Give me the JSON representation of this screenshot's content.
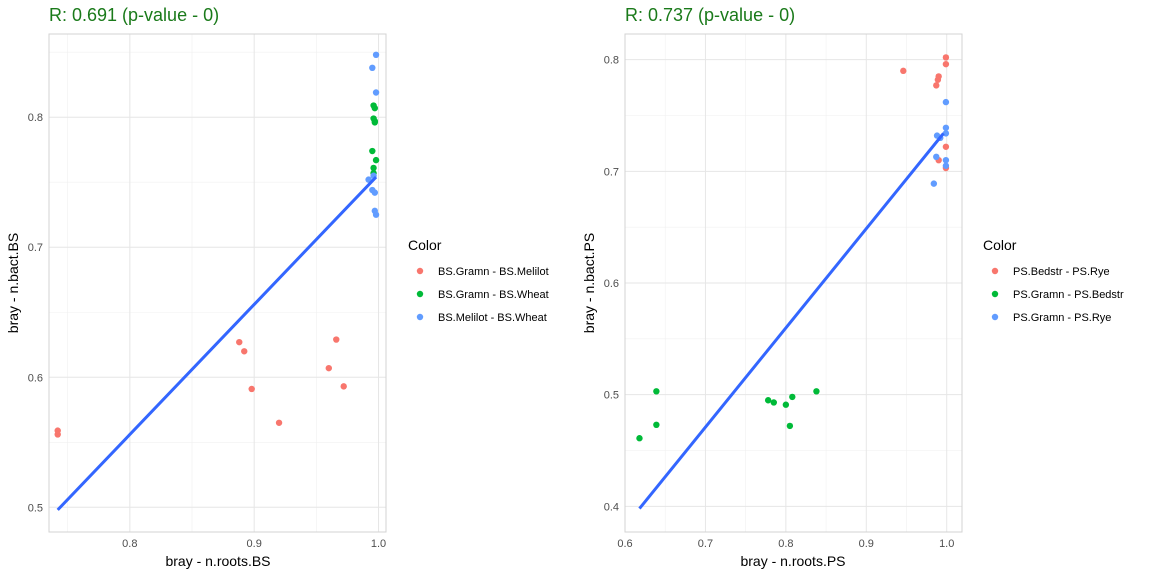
{
  "chart_data": [
    {
      "type": "scatter",
      "title": "R: 0.691 (p-value - 0)",
      "xlabel": "bray - n.roots.BS",
      "ylabel": "bray - n.bact.BS",
      "xlim": [
        0.735,
        1.006
      ],
      "ylim": [
        0.481,
        0.864
      ],
      "xticks": [
        0.8,
        0.9,
        1.0
      ],
      "xtick_labels": [
        "0.8",
        "0.9",
        "1.0"
      ],
      "yticks": [
        0.5,
        0.6,
        0.7,
        0.8
      ],
      "ytick_labels": [
        "0.5",
        "0.6",
        "0.7",
        "0.8"
      ],
      "grid": true,
      "legend_title": "Color",
      "legend_position": "right",
      "series": [
        {
          "name": "BS.Gramn - BS.Melilot",
          "color": "#F8766D",
          "points": [
            [
              0.742,
              0.559
            ],
            [
              0.742,
              0.556
            ],
            [
              0.888,
              0.627
            ],
            [
              0.892,
              0.62
            ],
            [
              0.898,
              0.591
            ],
            [
              0.92,
              0.565
            ],
            [
              0.96,
              0.607
            ],
            [
              0.966,
              0.629
            ],
            [
              0.972,
              0.593
            ]
          ]
        },
        {
          "name": "BS.Gramn - BS.Wheat",
          "color": "#00BA38",
          "points": [
            [
              0.996,
              0.809
            ],
            [
              0.997,
              0.807
            ],
            [
              0.996,
              0.799
            ],
            [
              0.997,
              0.797
            ],
            [
              0.997,
              0.796
            ],
            [
              0.995,
              0.774
            ],
            [
              0.998,
              0.767
            ],
            [
              0.996,
              0.761
            ],
            [
              0.996,
              0.757
            ]
          ]
        },
        {
          "name": "BS.Melilot - BS.Wheat",
          "color": "#619CFF",
          "points": [
            [
              0.998,
              0.848
            ],
            [
              0.995,
              0.838
            ],
            [
              0.998,
              0.819
            ],
            [
              0.996,
              0.755
            ],
            [
              0.992,
              0.752
            ],
            [
              0.995,
              0.744
            ],
            [
              0.997,
              0.742
            ],
            [
              0.997,
              0.728
            ],
            [
              0.998,
              0.725
            ]
          ]
        }
      ],
      "fit_line": {
        "color": "#3366FF",
        "points": [
          [
            0.742,
            0.498
          ],
          [
            0.998,
            0.754
          ]
        ]
      }
    },
    {
      "type": "scatter",
      "title": "R: 0.737 (p-value - 0)",
      "xlabel": "bray - n.roots.PS",
      "ylabel": "bray - n.bact.PS",
      "xlim": [
        0.6,
        1.019
      ],
      "ylim": [
        0.377,
        0.823
      ],
      "xticks": [
        0.6,
        0.7,
        0.8,
        0.9,
        1.0
      ],
      "xtick_labels": [
        "0.6",
        "0.7",
        "0.8",
        "0.9",
        "1.0"
      ],
      "yticks": [
        0.4,
        0.5,
        0.6,
        0.7,
        0.8
      ],
      "ytick_labels": [
        "0.4",
        "0.5",
        "0.6",
        "0.7",
        "0.8"
      ],
      "grid": true,
      "legend_title": "Color",
      "legend_position": "right",
      "series": [
        {
          "name": "PS.Bedstr - PS.Rye",
          "color": "#F8766D",
          "points": [
            [
              0.946,
              0.79
            ],
            [
              0.99,
              0.785
            ],
            [
              0.989,
              0.782
            ],
            [
              0.987,
              0.777
            ],
            [
              0.999,
              0.802
            ],
            [
              0.999,
              0.796
            ],
            [
              0.999,
              0.722
            ],
            [
              0.99,
              0.71
            ],
            [
              0.999,
              0.703
            ]
          ]
        },
        {
          "name": "PS.Gramn - PS.Bedstr",
          "color": "#00BA38",
          "points": [
            [
              0.618,
              0.461
            ],
            [
              0.639,
              0.503
            ],
            [
              0.639,
              0.473
            ],
            [
              0.778,
              0.495
            ],
            [
              0.785,
              0.493
            ],
            [
              0.8,
              0.491
            ],
            [
              0.805,
              0.472
            ],
            [
              0.808,
              0.498
            ],
            [
              0.838,
              0.503
            ]
          ]
        },
        {
          "name": "PS.Gramn - PS.Rye",
          "color": "#619CFF",
          "points": [
            [
              0.999,
              0.762
            ],
            [
              0.999,
              0.739
            ],
            [
              0.999,
              0.734
            ],
            [
              0.988,
              0.732
            ],
            [
              0.992,
              0.73
            ],
            [
              0.987,
              0.713
            ],
            [
              0.999,
              0.71
            ],
            [
              0.999,
              0.705
            ],
            [
              0.984,
              0.689
            ]
          ]
        }
      ],
      "fit_line": {
        "color": "#3366FF",
        "points": [
          [
            0.618,
            0.398
          ],
          [
            0.996,
            0.734
          ]
        ]
      }
    }
  ]
}
